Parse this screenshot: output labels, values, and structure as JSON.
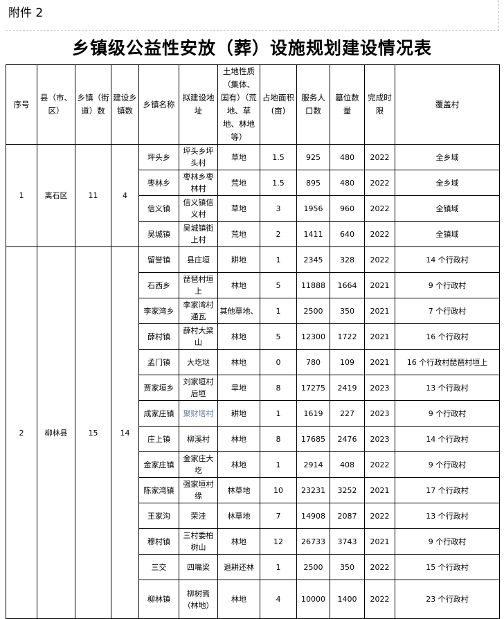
{
  "attachment_label": "附件 2",
  "title": "乡镇级公益性安放（葬）设施规划建设情况表",
  "headers": [
    "序号",
    "县（市、区）",
    "乡镇（街道）数",
    "建设乡镇数",
    "乡镇名称",
    "拟建设地址",
    "土地性质（集体、国有）（荒地、草地、林地等）",
    "占地面积(亩)",
    "服务人口数",
    "墓位数量",
    "完成时限",
    "覆盖村"
  ],
  "groups": [
    {
      "index": "1",
      "county": "离石区",
      "towns_total": "11",
      "towns_built": "4",
      "rows": [
        {
          "town": "坪头乡",
          "site": "坪头乡坪头村",
          "land": "草地",
          "area": "1.5",
          "population": "925",
          "plots": "480",
          "deadline": "2022",
          "coverage": "全乡域"
        },
        {
          "town": "枣林乡",
          "site": "枣林乡枣林村",
          "land": "荒地",
          "area": "1.5",
          "population": "895",
          "plots": "480",
          "deadline": "2022",
          "coverage": "全乡域"
        },
        {
          "town": "信义镇",
          "site": "信义镇信义村",
          "land": "草地",
          "area": "3",
          "population": "1956",
          "plots": "960",
          "deadline": "2022",
          "coverage": "全镇域"
        },
        {
          "town": "吴城镇",
          "site": "吴城镇街上村",
          "land": "荒地",
          "area": "2",
          "population": "1411",
          "plots": "640",
          "deadline": "2022",
          "coverage": "全镇域"
        }
      ]
    },
    {
      "index": "2",
      "county": "柳林县",
      "towns_total": "15",
      "towns_built": "14",
      "rows": [
        {
          "town": "留誉镇",
          "site": "县庄垣",
          "land": "耕地",
          "area": "1",
          "population": "2345",
          "plots": "328",
          "deadline": "2022",
          "coverage": "14 个行政村"
        },
        {
          "town": "石西乡",
          "site": "琵琶村垣上",
          "land": "林地",
          "area": "5",
          "population": "11888",
          "plots": "1664",
          "deadline": "2021",
          "coverage": "9 个行政村"
        },
        {
          "town": "李家湾乡",
          "site": "李家湾村通瓦",
          "land": "其他草地、",
          "area": "1",
          "population": "2500",
          "plots": "350",
          "deadline": "2021",
          "coverage": "7 个行政村"
        },
        {
          "town": "薛村镇",
          "site": "薛村大梁山",
          "land": "林地",
          "area": "5",
          "population": "12300",
          "plots": "1722",
          "deadline": "2021",
          "coverage": "16 个行政村"
        },
        {
          "town": "孟门镇",
          "site": "大圪垯",
          "land": "林地",
          "area": "0",
          "population": "780",
          "plots": "109",
          "deadline": "2021",
          "coverage": "16 个行政村琵琶村垣上"
        },
        {
          "town": "贾家垣乡",
          "site": "刘家垣村后垣",
          "land": "旱地",
          "area": "8",
          "population": "17275",
          "plots": "2419",
          "deadline": "2023",
          "coverage": "13 个行政村"
        },
        {
          "town": "成家庄镇",
          "site": "聚财塔村",
          "land": "耕地",
          "area": "1",
          "population": "1619",
          "plots": "227",
          "deadline": "2023",
          "coverage": "9 个行政村"
        },
        {
          "town": "庄上镇",
          "site": "柳溪村",
          "land": "林地",
          "area": "8",
          "population": "17685",
          "plots": "2476",
          "deadline": "2023",
          "coverage": "14 个行政村"
        },
        {
          "town": "金家庄镇",
          "site": "金家庄大圪",
          "land": "林地",
          "area": "1",
          "population": "2914",
          "plots": "408",
          "deadline": "2022",
          "coverage": "9 个行政村"
        },
        {
          "town": "陈家湾镇",
          "site": "强家垣村缘",
          "land": "林草地",
          "area": "10",
          "population": "23231",
          "plots": "3252",
          "deadline": "2021",
          "coverage": "17 个行政村"
        },
        {
          "town": "王家沟",
          "site": "荣洼",
          "land": "林草地",
          "area": "7",
          "population": "14908",
          "plots": "2087",
          "deadline": "2022",
          "coverage": "13 个行政村"
        },
        {
          "town": "穆村镇",
          "site": "三村委柏树山",
          "land": "林地",
          "area": "12",
          "population": "26733",
          "plots": "3743",
          "deadline": "2021",
          "coverage": "9 个行政村"
        },
        {
          "town": "三交",
          "site": "四嘴梁",
          "land": "退耕还林",
          "area": "1",
          "population": "2500",
          "plots": "350",
          "deadline": "2022",
          "coverage": "15 个行政村"
        },
        {
          "town": "柳林镇",
          "site": "柳树焉（林地）",
          "land": "林地",
          "area": "4",
          "population": "10000",
          "plots": "1400",
          "deadline": "2022",
          "coverage": "23 个行政村"
        }
      ]
    }
  ]
}
